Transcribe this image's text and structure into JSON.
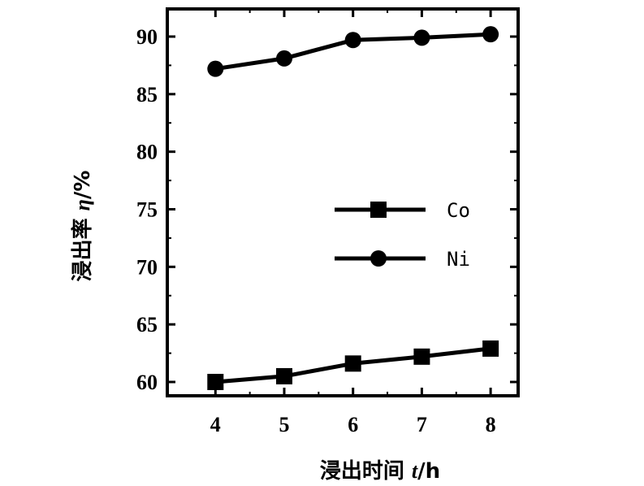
{
  "chart_data": {
    "type": "line",
    "x": [
      4,
      5,
      6,
      7,
      8
    ],
    "xticks": [
      "4",
      "5",
      "6",
      "7",
      "8"
    ],
    "yticks": [
      "60",
      "65",
      "70",
      "75",
      "80",
      "85",
      "90"
    ],
    "xlim": [
      3.3,
      8.4
    ],
    "ylim": [
      58.8,
      92.4
    ],
    "xlabel": {
      "text": "浸出时间 ",
      "var": "t",
      "unit": "/h"
    },
    "ylabel": {
      "text": "浸出率 ",
      "var": "η",
      "unit": "/%"
    },
    "legend_position": "middle-right",
    "series": [
      {
        "name": "Co",
        "marker": "square",
        "color": "#000000",
        "values": [
          60.0,
          60.5,
          61.6,
          62.2,
          62.9
        ]
      },
      {
        "name": "Ni",
        "marker": "circle",
        "color": "#000000",
        "values": [
          87.2,
          88.1,
          89.7,
          89.9,
          90.2
        ]
      }
    ]
  }
}
